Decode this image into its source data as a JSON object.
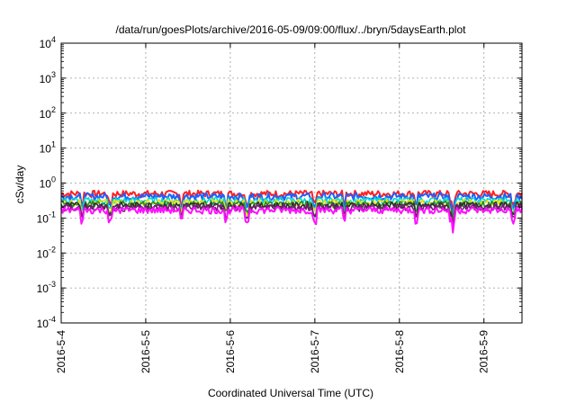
{
  "chart_data": {
    "type": "line",
    "title": "/data/run/goesPlots/archive/2016-05-09/09:00/flux/../bryn/5daysEarth.plot",
    "xlabel": "Coordinated Universal Time (UTC)",
    "ylabel": "cSv/day",
    "yscale": "log",
    "ylim": [
      0.0001,
      10000
    ],
    "xlim_days": [
      0,
      5.45
    ],
    "x_ticks": [
      {
        "label": "2016-5-4",
        "day": 0
      },
      {
        "label": "2016-5-5",
        "day": 1
      },
      {
        "label": "2016-5-6",
        "day": 2
      },
      {
        "label": "2016-5-7",
        "day": 3
      },
      {
        "label": "2016-5-8",
        "day": 4
      },
      {
        "label": "2016-5-9",
        "day": 5
      }
    ],
    "y_ticks": [
      {
        "base": "10",
        "exp": "-4",
        "value": 0.0001
      },
      {
        "base": "10",
        "exp": "-3",
        "value": 0.001
      },
      {
        "base": "10",
        "exp": "-2",
        "value": 0.01
      },
      {
        "base": "10",
        "exp": "-1",
        "value": 0.1
      },
      {
        "base": "10",
        "exp": "0",
        "value": 1
      },
      {
        "base": "10",
        "exp": "1",
        "value": 10
      },
      {
        "base": "10",
        "exp": "2",
        "value": 100
      },
      {
        "base": "10",
        "exp": "3",
        "value": 1000
      },
      {
        "base": "10",
        "exp": "4",
        "value": 10000
      }
    ],
    "grid": true,
    "legend": "none",
    "series": [
      {
        "color": "#ff2020",
        "base": 0.5,
        "dip_depth": 0.55
      },
      {
        "color": "#1f5fff",
        "base": 0.42,
        "dip_depth": 0.55
      },
      {
        "color": "#00d8d8",
        "base": 0.32,
        "dip_depth": 0.55
      },
      {
        "color": "#e8e000",
        "base": 0.28,
        "dip_depth": 0.55
      },
      {
        "color": "#2a8a2a",
        "base": 0.25,
        "dip_depth": 0.55
      },
      {
        "color": "#303030",
        "base": 0.23,
        "dip_depth": 0.55
      },
      {
        "color": "#7a1a7a",
        "base": 0.2,
        "dip_depth": 0.55
      },
      {
        "color": "#ff10ff",
        "base": 0.17,
        "dip_depth": 0.5
      }
    ],
    "dips_days": [
      0.25,
      0.58,
      1.42,
      1.95,
      2.2,
      3.0,
      3.35,
      4.2,
      4.62,
      4.64,
      5.35
    ]
  }
}
